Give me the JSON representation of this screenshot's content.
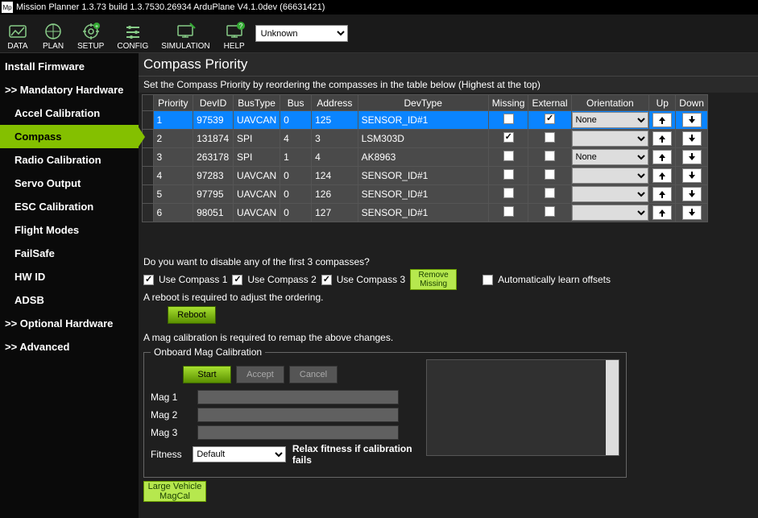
{
  "window": {
    "title": "Mission Planner 1.3.73 build 1.3.7530.26934 ArduPlane V4.1.0dev (66631421)",
    "icon_label": "Mp"
  },
  "toolbar": {
    "items": [
      {
        "label": "DATA"
      },
      {
        "label": "PLAN"
      },
      {
        "label": "SETUP"
      },
      {
        "label": "CONFIG"
      },
      {
        "label": "SIMULATION"
      },
      {
        "label": "HELP"
      }
    ],
    "dropdown_value": "Unknown"
  },
  "sidebar": {
    "items": [
      {
        "label": "Install Firmware",
        "sub": false,
        "active": false
      },
      {
        "label": ">> Mandatory Hardware",
        "sub": false,
        "active": false
      },
      {
        "label": "Accel Calibration",
        "sub": true,
        "active": false
      },
      {
        "label": "Compass",
        "sub": true,
        "active": true
      },
      {
        "label": "Radio Calibration",
        "sub": true,
        "active": false
      },
      {
        "label": "Servo Output",
        "sub": true,
        "active": false
      },
      {
        "label": "ESC Calibration",
        "sub": true,
        "active": false
      },
      {
        "label": "Flight Modes",
        "sub": true,
        "active": false
      },
      {
        "label": "FailSafe",
        "sub": true,
        "active": false
      },
      {
        "label": "HW ID",
        "sub": true,
        "active": false
      },
      {
        "label": "ADSB",
        "sub": true,
        "active": false
      },
      {
        "label": ">> Optional Hardware",
        "sub": false,
        "active": false
      },
      {
        "label": ">> Advanced",
        "sub": false,
        "active": false
      }
    ]
  },
  "compass": {
    "title": "Compass Priority",
    "description": "Set the Compass Priority by reordering the compasses in the table below (Highest at the top)",
    "columns": [
      "Priority",
      "DevID",
      "BusType",
      "Bus",
      "Address",
      "DevType",
      "Missing",
      "External",
      "Orientation",
      "Up",
      "Down"
    ],
    "rows": [
      {
        "priority": "1",
        "devid": "97539",
        "bustype": "UAVCAN",
        "bus": "0",
        "address": "125",
        "devtype": "SENSOR_ID#1",
        "missing": false,
        "external": true,
        "orientation": "None",
        "selected": true
      },
      {
        "priority": "2",
        "devid": "131874",
        "bustype": "SPI",
        "bus": "4",
        "address": "3",
        "devtype": "LSM303D",
        "missing": true,
        "external": false,
        "orientation": "",
        "selected": false
      },
      {
        "priority": "3",
        "devid": "263178",
        "bustype": "SPI",
        "bus": "1",
        "address": "4",
        "devtype": "AK8963",
        "missing": false,
        "external": false,
        "orientation": "None",
        "selected": false
      },
      {
        "priority": "4",
        "devid": "97283",
        "bustype": "UAVCAN",
        "bus": "0",
        "address": "124",
        "devtype": "SENSOR_ID#1",
        "missing": false,
        "external": false,
        "orientation": "",
        "selected": false
      },
      {
        "priority": "5",
        "devid": "97795",
        "bustype": "UAVCAN",
        "bus": "0",
        "address": "126",
        "devtype": "SENSOR_ID#1",
        "missing": false,
        "external": false,
        "orientation": "",
        "selected": false
      },
      {
        "priority": "6",
        "devid": "98051",
        "bustype": "UAVCAN",
        "bus": "0",
        "address": "127",
        "devtype": "SENSOR_ID#1",
        "missing": false,
        "external": false,
        "orientation": "",
        "selected": false
      }
    ],
    "disable_prompt": "Do you want to disable any of the first 3 compasses?",
    "use_compass_labels": [
      "Use Compass 1",
      "Use Compass 2",
      "Use Compass 3"
    ],
    "use_compass_checked": [
      true,
      true,
      true
    ],
    "remove_missing_label": "Remove Missing",
    "auto_learn_label": "Automatically learn offsets",
    "auto_learn_checked": false,
    "reboot_note": "A reboot is required to adjust the ordering.",
    "reboot_label": "Reboot",
    "magcal_note": "A mag calibration is required to remap the above changes.",
    "magcal_legend": "Onboard Mag Calibration",
    "start_label": "Start",
    "accept_label": "Accept",
    "cancel_label": "Cancel",
    "mag_labels": [
      "Mag 1",
      "Mag 2",
      "Mag 3"
    ],
    "fitness_label": "Fitness",
    "fitness_value": "Default",
    "relax_label": "Relax fitness if calibration fails",
    "large_vehicle_label": "Large Vehicle MagCal"
  },
  "colors": {
    "accent": "#84c000",
    "selected_row": "#0a84ff",
    "bg_dark": "#1a1a1a"
  }
}
